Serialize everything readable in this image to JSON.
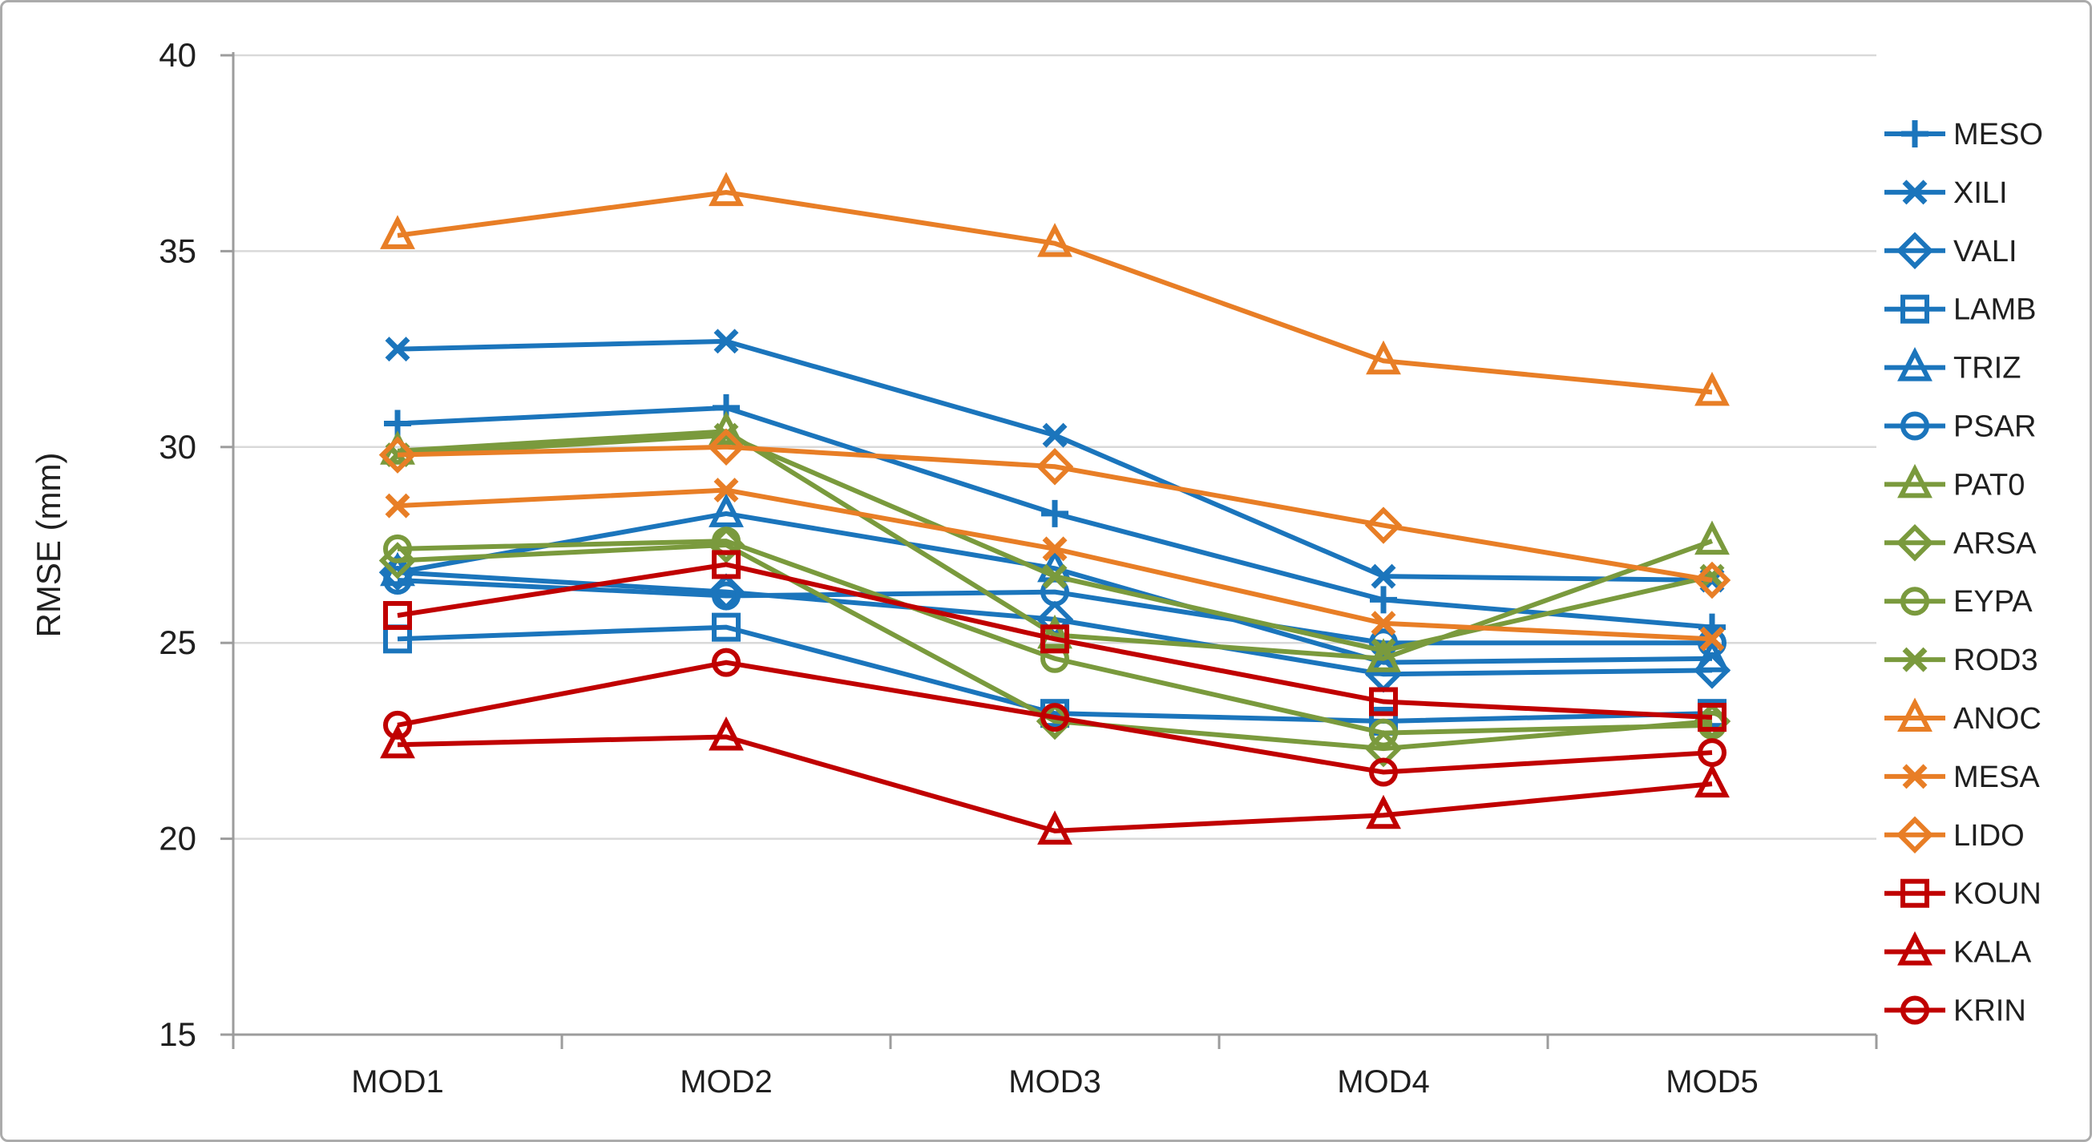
{
  "figure": {
    "background": "#ffffff",
    "border_color": "#ababab"
  },
  "chart_data": {
    "type": "line",
    "title": "",
    "xlabel": "",
    "ylabel": "RMSE (mm)",
    "categories": [
      "MOD1",
      "MOD2",
      "MOD3",
      "MOD4",
      "MOD5"
    ],
    "ylim": [
      15,
      40
    ],
    "yticks": [
      15,
      20,
      25,
      30,
      35,
      40
    ],
    "grid": true,
    "legend_position": "right",
    "colors": {
      "gridline": "#d9d9d9",
      "axis": "#9c9c9c",
      "text": "#1f1f1f"
    },
    "series": [
      {
        "name": "MESO",
        "color": "#1b75bc",
        "marker": "plus",
        "values": [
          30.6,
          31.0,
          28.3,
          26.1,
          25.4
        ]
      },
      {
        "name": "XILI",
        "color": "#1b75bc",
        "marker": "x",
        "values": [
          32.5,
          32.7,
          30.3,
          26.7,
          26.6
        ]
      },
      {
        "name": "VALI",
        "color": "#1b75bc",
        "marker": "diamond",
        "values": [
          26.8,
          26.3,
          25.6,
          24.2,
          24.3
        ]
      },
      {
        "name": "LAMB",
        "color": "#1b75bc",
        "marker": "square",
        "values": [
          25.1,
          25.4,
          23.2,
          23.0,
          23.2
        ]
      },
      {
        "name": "TRIZ",
        "color": "#1b75bc",
        "marker": "triangle",
        "values": [
          26.8,
          28.3,
          26.9,
          24.5,
          24.6
        ]
      },
      {
        "name": "PSAR",
        "color": "#1b75bc",
        "marker": "circle",
        "values": [
          26.6,
          26.2,
          26.3,
          25.0,
          25.0
        ]
      },
      {
        "name": "PAT0",
        "color": "#7a9a3d",
        "marker": "triangle",
        "values": [
          29.9,
          30.4,
          25.2,
          24.6,
          27.6
        ]
      },
      {
        "name": "ARSA",
        "color": "#7a9a3d",
        "marker": "diamond",
        "values": [
          27.1,
          27.5,
          23.0,
          22.3,
          23.0
        ]
      },
      {
        "name": "EYPA",
        "color": "#7a9a3d",
        "marker": "circle",
        "values": [
          27.4,
          27.6,
          24.6,
          22.7,
          22.9
        ]
      },
      {
        "name": "ROD3",
        "color": "#7a9a3d",
        "marker": "x",
        "values": [
          29.8,
          30.3,
          26.7,
          24.8,
          26.7
        ]
      },
      {
        "name": "ANOC",
        "color": "#e87e26",
        "marker": "triangle",
        "values": [
          35.4,
          36.5,
          35.2,
          32.2,
          31.4
        ]
      },
      {
        "name": "MESA",
        "color": "#e87e26",
        "marker": "x",
        "values": [
          28.5,
          28.9,
          27.4,
          25.5,
          25.1
        ]
      },
      {
        "name": "LIDO",
        "color": "#e87e26",
        "marker": "diamond",
        "values": [
          29.8,
          30.0,
          29.5,
          28.0,
          26.6
        ]
      },
      {
        "name": "KOUN",
        "color": "#c00000",
        "marker": "square",
        "values": [
          25.7,
          27.0,
          25.1,
          23.5,
          23.1
        ]
      },
      {
        "name": "KALA",
        "color": "#c00000",
        "marker": "triangle",
        "values": [
          22.4,
          22.6,
          20.2,
          20.6,
          21.4
        ]
      },
      {
        "name": "KRIN",
        "color": "#c00000",
        "marker": "circle",
        "values": [
          22.9,
          24.5,
          23.1,
          21.7,
          22.2
        ]
      }
    ]
  }
}
